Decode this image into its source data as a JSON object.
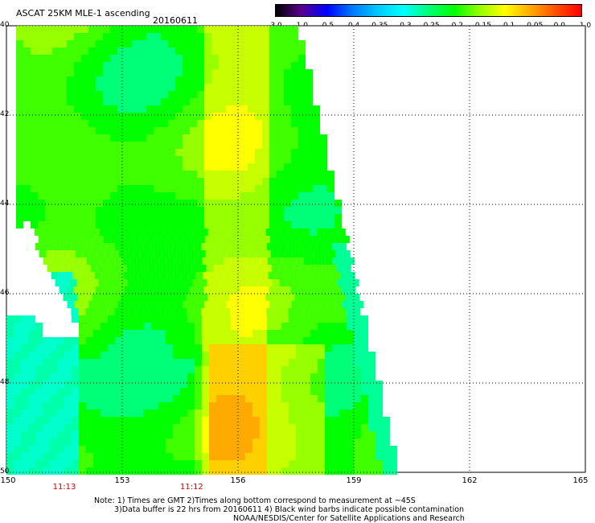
{
  "header": {
    "title": "ASCAT 25KM MLE-1 ascending",
    "date": "20160611"
  },
  "colorbar": {
    "labels": [
      "-3.0",
      "-1.0",
      "-0.5",
      "-0.4",
      "-0.35",
      "-0.3",
      "-0.25",
      "-0.2",
      "-0.15",
      "-0.1",
      "-0.05",
      "0.0",
      "1.0"
    ],
    "colors": [
      "#000000",
      "#5a008c",
      "#0000ff",
      "#0078ff",
      "#00c8ff",
      "#00ffff",
      "#00ff78",
      "#00ff00",
      "#96ff00",
      "#ffff00",
      "#ffaa00",
      "#ff5000",
      "#ff0000"
    ]
  },
  "map": {
    "lat_labels": [
      "40",
      "42",
      "44",
      "46",
      "48",
      "50"
    ],
    "lon_labels": [
      "150",
      "153",
      "156",
      "159",
      "162",
      "165"
    ],
    "time_labels": [
      {
        "text": "11:13",
        "lon": 151.5
      },
      {
        "text": "11:12",
        "lon": 154.8
      }
    ]
  },
  "notes": {
    "line1": "Note: 1) Times are GMT 2)Times along bottom correspond to measurement at ~45S",
    "line2": "3)Data buffer is 22 hrs from 20160611 4) Black wind barbs indicate possible contamination",
    "line3": "NOAA/NESDIS/Center for Satellite Applications and Research"
  }
}
